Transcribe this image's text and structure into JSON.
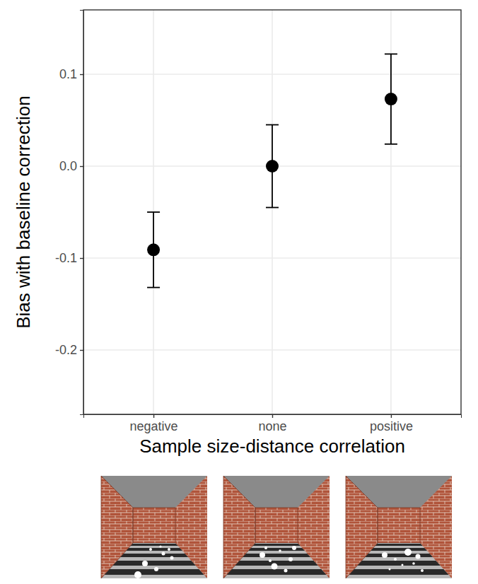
{
  "chart_data": {
    "type": "point",
    "x_label": "Sample size-distance correlation",
    "y_label": "Bias with baseline correction",
    "categories": [
      "negative",
      "none",
      "positive"
    ],
    "values": [
      -0.091,
      0.0,
      0.073
    ],
    "errors": [
      0.041,
      0.045,
      0.049
    ],
    "color": "#000000",
    "ylim": [
      -0.27,
      0.17
    ],
    "yticks": [
      {
        "value": -0.2,
        "label": "-0.2"
      },
      {
        "value": -0.1,
        "label": "-0.1"
      },
      {
        "value": 0,
        "label": "0.0"
      },
      {
        "value": 0.1,
        "label": "0.1"
      }
    ],
    "grid": true
  }
}
